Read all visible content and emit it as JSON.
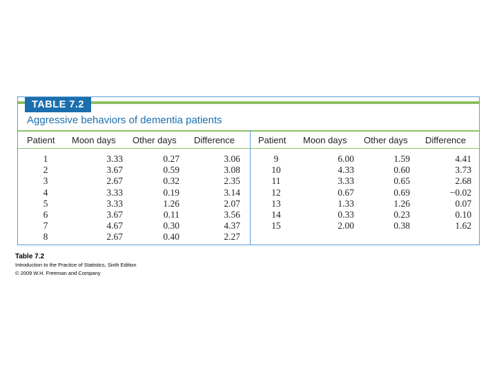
{
  "table": {
    "label": "TABLE 7.2",
    "title": "Aggressive behaviors of dementia patients",
    "columns": [
      "Patient",
      "Moon days",
      "Other days",
      "Difference"
    ],
    "left_rows": [
      [
        "1",
        "3.33",
        "0.27",
        "3.06"
      ],
      [
        "2",
        "3.67",
        "0.59",
        "3.08"
      ],
      [
        "3",
        "2.67",
        "0.32",
        "2.35"
      ],
      [
        "4",
        "3.33",
        "0.19",
        "3.14"
      ],
      [
        "5",
        "3.33",
        "1.26",
        "2.07"
      ],
      [
        "6",
        "3.67",
        "0.11",
        "3.56"
      ],
      [
        "7",
        "4.67",
        "0.30",
        "4.37"
      ],
      [
        "8",
        "2.67",
        "0.40",
        "2.27"
      ]
    ],
    "right_rows": [
      [
        "9",
        "6.00",
        "1.59",
        "4.41"
      ],
      [
        "10",
        "4.33",
        "0.60",
        "3.73"
      ],
      [
        "11",
        "3.33",
        "0.65",
        "2.68"
      ],
      [
        "12",
        "0.67",
        "0.69",
        "−0.02"
      ],
      [
        "13",
        "1.33",
        "1.26",
        "0.07"
      ],
      [
        "14",
        "0.33",
        "0.23",
        "0.10"
      ],
      [
        "15",
        "2.00",
        "0.38",
        "1.62"
      ]
    ]
  },
  "caption": {
    "title": "Table 7.2",
    "book": "Introduction to the Practice of Statistics, Sixth Edition",
    "copyright": "© 2009 W.H. Freeman and Company"
  },
  "colors": {
    "accent_blue": "#1b6fae",
    "accent_green": "#8fbf65",
    "border_blue": "#5b9bd5"
  }
}
